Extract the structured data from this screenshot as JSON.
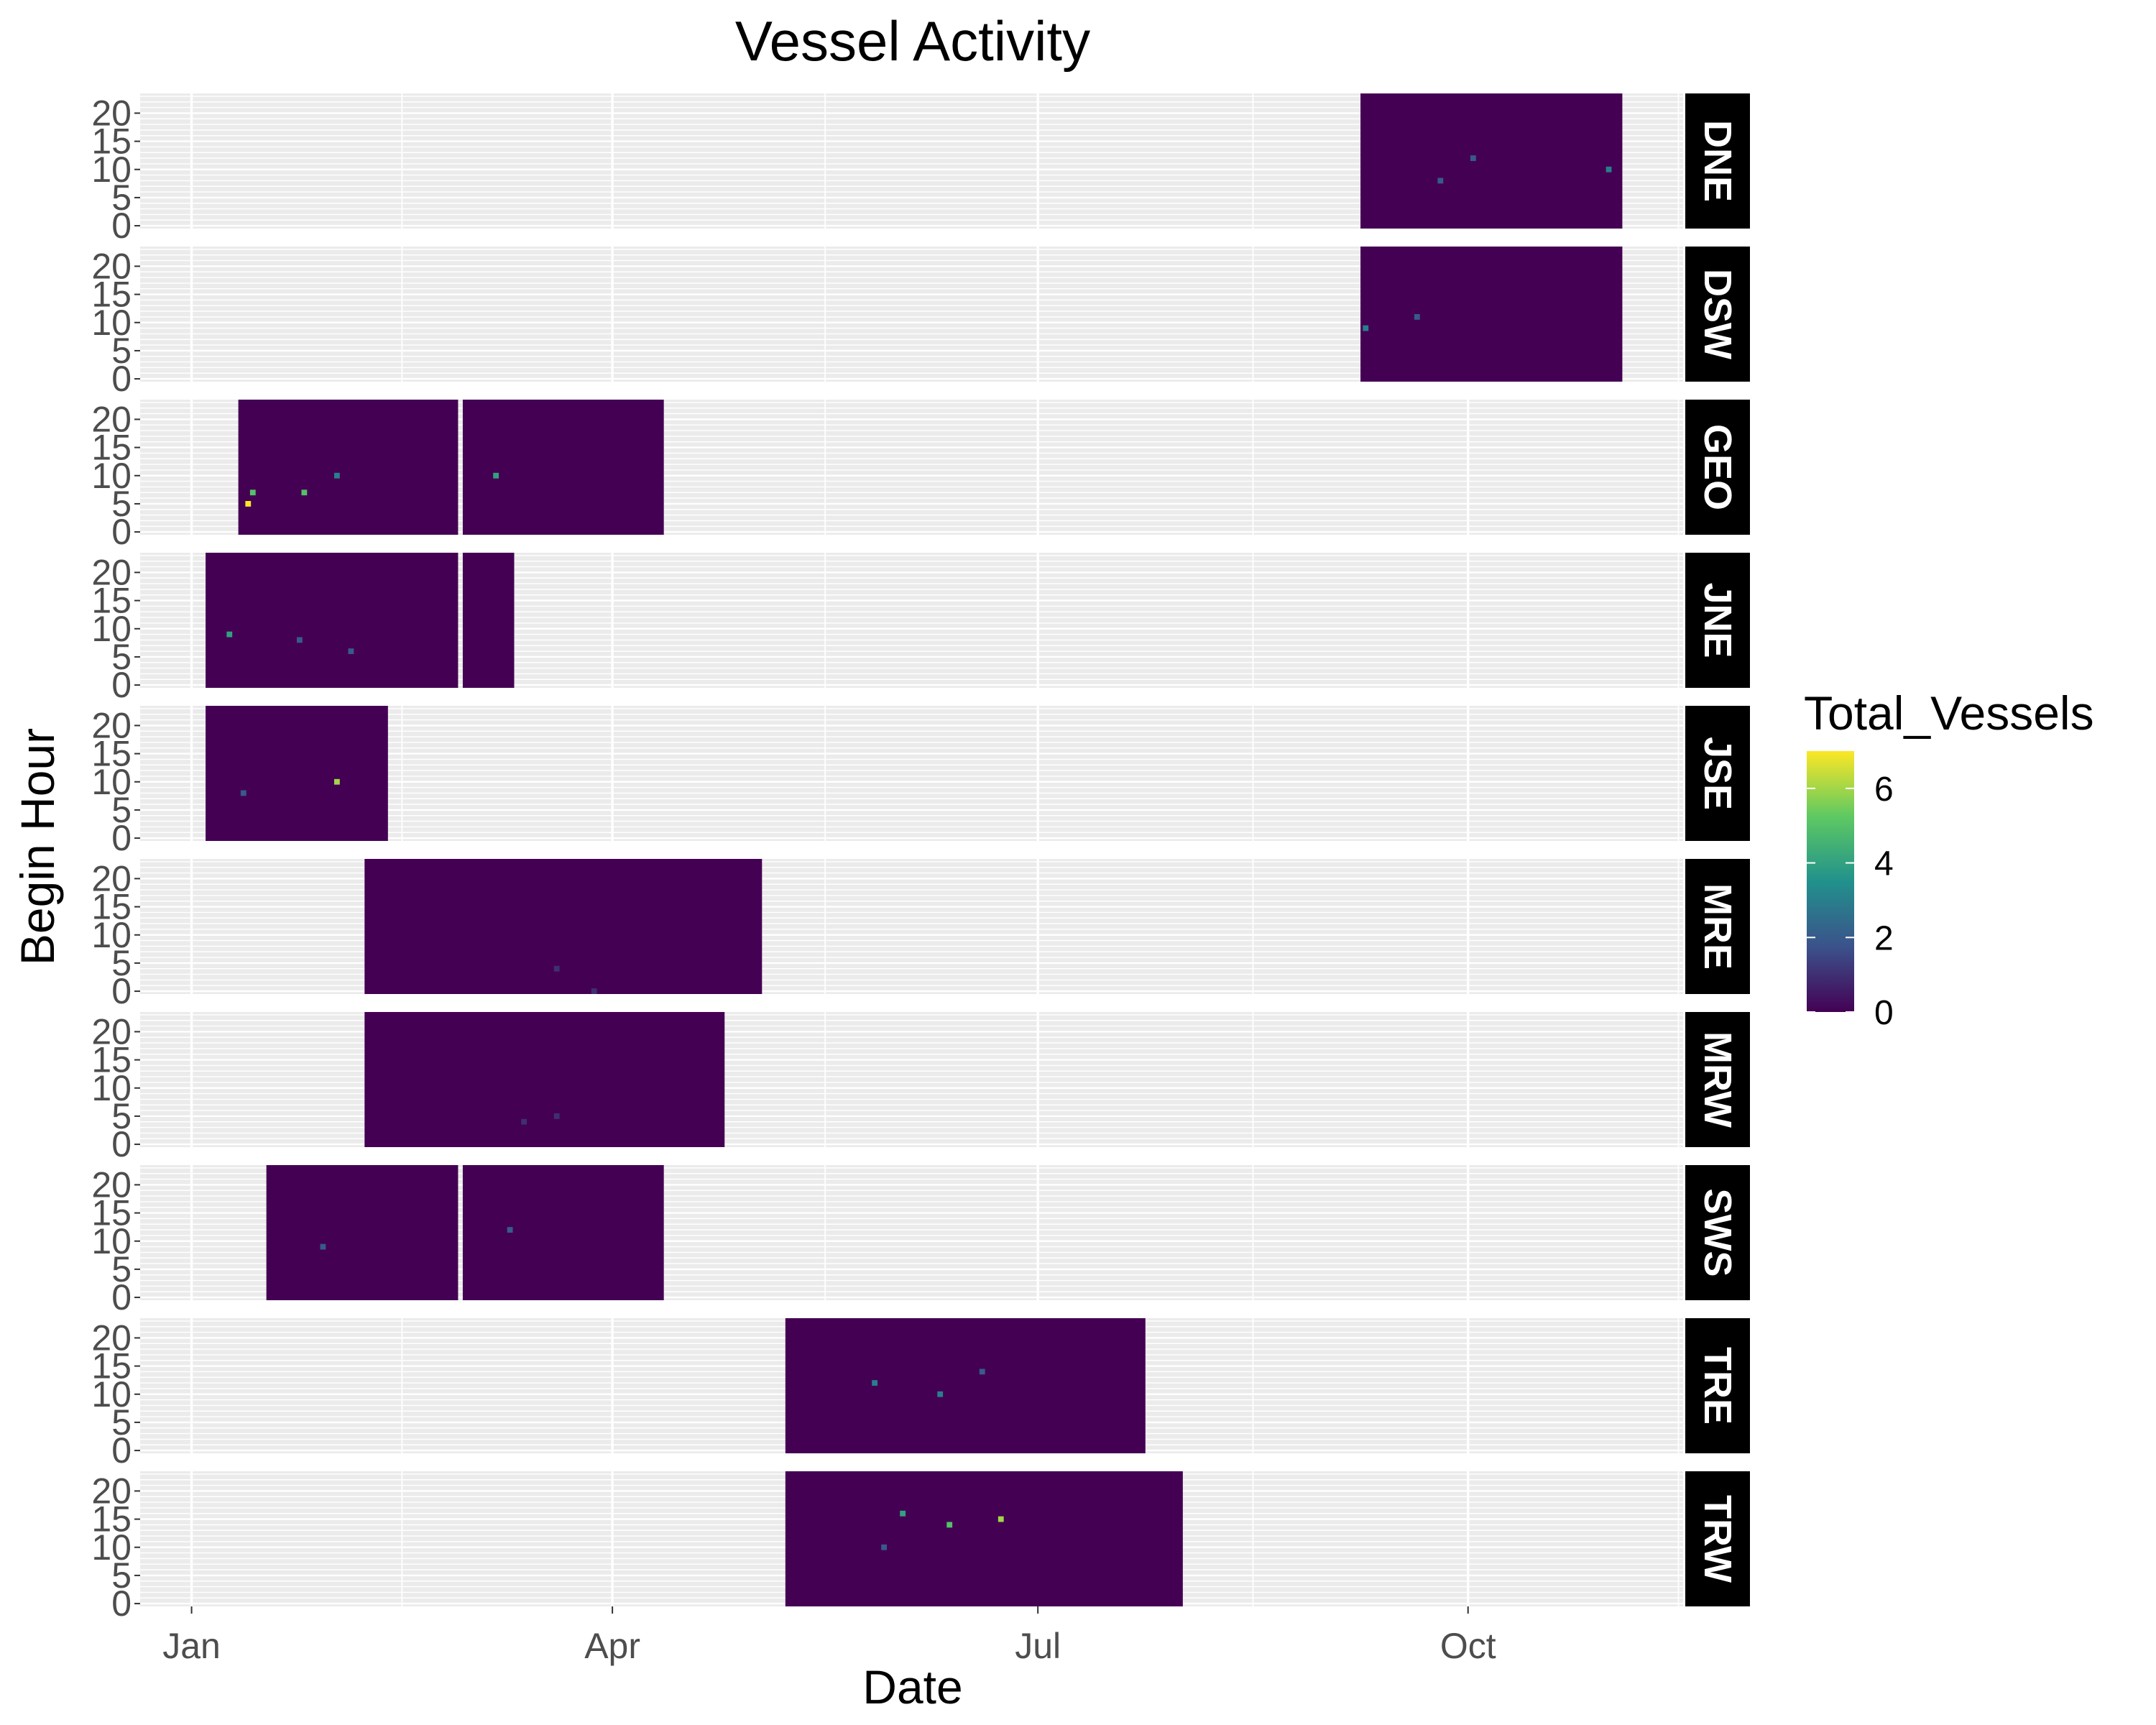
{
  "chart_data": {
    "type": "heatmap",
    "title": "Vessel Activity",
    "xlabel": "Date",
    "ylabel": "Begin Hour",
    "x_ticks": [
      "Jan",
      "Apr",
      "Jul",
      "Oct"
    ],
    "x_tick_days": [
      1,
      91,
      182,
      274
    ],
    "x_range_days": [
      -10,
      320
    ],
    "y_ticks": [
      0,
      5,
      10,
      15,
      20
    ],
    "y_range": [
      -0.5,
      23.5
    ],
    "grid": true,
    "legend": {
      "title": "Total_Vessels",
      "position": "right",
      "ticks": [
        0,
        2,
        4,
        6
      ],
      "range": [
        0,
        7
      ],
      "colormap": [
        "#440154",
        "#3b528b",
        "#21918c",
        "#5ec962",
        "#fde725"
      ]
    },
    "panels": [
      {
        "site": "DNE",
        "segments": [
          {
            "start": "2015-09-08",
            "end": "2015-11-03"
          }
        ],
        "hotspots": [
          {
            "date": "2015-10-31",
            "hour": 10,
            "value": 3
          },
          {
            "date": "2015-09-25",
            "hour": 8,
            "value": 2
          },
          {
            "date": "2015-10-02",
            "hour": 12,
            "value": 2
          }
        ]
      },
      {
        "site": "DSW",
        "segments": [
          {
            "start": "2015-09-08",
            "end": "2015-11-03"
          }
        ],
        "hotspots": [
          {
            "date": "2015-09-09",
            "hour": 9,
            "value": 3
          },
          {
            "date": "2015-09-20",
            "hour": 11,
            "value": 2
          }
        ]
      },
      {
        "site": "GEO",
        "segments": [
          {
            "start": "2015-01-11",
            "end": "2015-02-27"
          },
          {
            "start": "2015-02-28",
            "end": "2015-04-12"
          }
        ],
        "hotspots": [
          {
            "date": "2015-01-13",
            "hour": 5,
            "value": 7
          },
          {
            "date": "2015-01-14",
            "hour": 7,
            "value": 5
          },
          {
            "date": "2015-01-25",
            "hour": 7,
            "value": 5
          },
          {
            "date": "2015-03-07",
            "hour": 10,
            "value": 4
          },
          {
            "date": "2015-02-01",
            "hour": 10,
            "value": 3
          }
        ]
      },
      {
        "site": "JNE",
        "segments": [
          {
            "start": "2015-01-04",
            "end": "2015-02-27"
          },
          {
            "start": "2015-02-28",
            "end": "2015-03-11"
          }
        ],
        "hotspots": [
          {
            "date": "2015-01-09",
            "hour": 9,
            "value": 4
          },
          {
            "date": "2015-01-24",
            "hour": 8,
            "value": 2
          },
          {
            "date": "2015-02-04",
            "hour": 6,
            "value": 2
          }
        ]
      },
      {
        "site": "JSE",
        "segments": [
          {
            "start": "2015-01-04",
            "end": "2015-02-12"
          }
        ],
        "hotspots": [
          {
            "date": "2015-02-01",
            "hour": 10,
            "value": 6
          },
          {
            "date": "2015-01-12",
            "hour": 8,
            "value": 2
          }
        ]
      },
      {
        "site": "MRE",
        "segments": [
          {
            "start": "2015-02-07",
            "end": "2015-05-03"
          }
        ],
        "hotspots": [
          {
            "date": "2015-03-20",
            "hour": 4,
            "value": 1
          },
          {
            "date": "2015-03-28",
            "hour": 0,
            "value": 1
          }
        ]
      },
      {
        "site": "MRW",
        "segments": [
          {
            "start": "2015-02-07",
            "end": "2015-04-25"
          }
        ],
        "hotspots": [
          {
            "date": "2015-03-13",
            "hour": 4,
            "value": 1
          },
          {
            "date": "2015-03-20",
            "hour": 5,
            "value": 1
          }
        ]
      },
      {
        "site": "SWS",
        "segments": [
          {
            "start": "2015-01-17",
            "end": "2015-02-27"
          },
          {
            "start": "2015-02-28",
            "end": "2015-04-12"
          }
        ],
        "hotspots": [
          {
            "date": "2015-01-29",
            "hour": 9,
            "value": 2
          },
          {
            "date": "2015-03-10",
            "hour": 12,
            "value": 2
          }
        ]
      },
      {
        "site": "TRE",
        "segments": [
          {
            "start": "2015-05-08",
            "end": "2015-07-24"
          }
        ],
        "hotspots": [
          {
            "date": "2015-05-27",
            "hour": 12,
            "value": 3
          },
          {
            "date": "2015-06-10",
            "hour": 10,
            "value": 3
          },
          {
            "date": "2015-06-19",
            "hour": 14,
            "value": 2
          }
        ]
      },
      {
        "site": "TRW",
        "segments": [
          {
            "start": "2015-05-08",
            "end": "2015-08-01"
          }
        ],
        "hotspots": [
          {
            "date": "2015-06-02",
            "hour": 16,
            "value": 4
          },
          {
            "date": "2015-06-12",
            "hour": 14,
            "value": 5
          },
          {
            "date": "2015-06-23",
            "hour": 15,
            "value": 6
          },
          {
            "date": "2015-05-29",
            "hour": 10,
            "value": 2
          }
        ]
      }
    ]
  }
}
